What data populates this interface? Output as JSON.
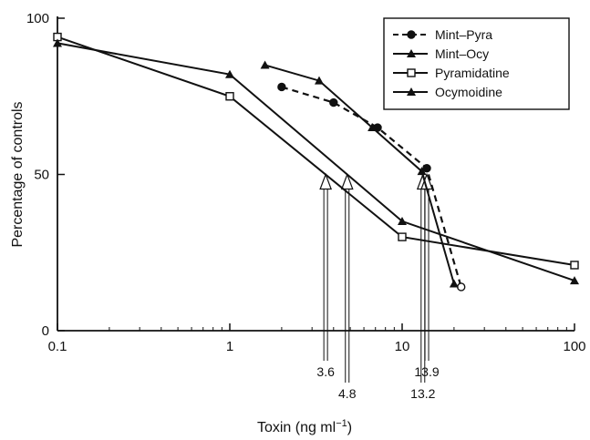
{
  "chart_data": {
    "type": "line",
    "x_scale": "log",
    "xlabel": "Toxin (ng ml",
    "xlabel_sup": "−1",
    "xlabel_suffix": ")",
    "ylabel": "Percentage of controls",
    "xlim": [
      0.1,
      100
    ],
    "ylim": [
      0,
      100
    ],
    "x_ticks": [
      {
        "value": 0.1,
        "label": "0.1"
      },
      {
        "value": 1,
        "label": "1"
      },
      {
        "value": 10,
        "label": "10"
      },
      {
        "value": 100,
        "label": "100"
      }
    ],
    "y_ticks": [
      {
        "value": 0,
        "label": "0"
      },
      {
        "value": 50,
        "label": "50"
      },
      {
        "value": 100,
        "label": "100"
      }
    ],
    "grid": false,
    "legend_position": "top-right",
    "series": [
      {
        "name": "Mint–Pyra",
        "style": "dashed",
        "marker": "filled-circle",
        "color": "#111111",
        "points": [
          [
            2.0,
            78
          ],
          [
            4.0,
            73
          ],
          [
            7.2,
            65
          ],
          [
            13.9,
            52
          ],
          [
            22,
            14
          ]
        ]
      },
      {
        "name": "Mint–Ocy",
        "style": "solid",
        "marker": "filled-triangle",
        "color": "#111111",
        "points": [
          [
            1.6,
            85
          ],
          [
            3.3,
            80
          ],
          [
            6.7,
            65
          ],
          [
            13.0,
            51
          ],
          [
            20,
            15
          ]
        ]
      },
      {
        "name": "Pyramidatine",
        "style": "solid",
        "marker": "open-square",
        "color": "#111111",
        "points": [
          [
            0.1,
            94
          ],
          [
            1.0,
            75
          ],
          [
            10,
            30
          ],
          [
            100,
            21
          ]
        ]
      },
      {
        "name": "Ocymoidine",
        "style": "solid",
        "marker": "filled-triangle",
        "color": "#111111",
        "points": [
          [
            0.1,
            92
          ],
          [
            1.0,
            82
          ],
          [
            10,
            35
          ],
          [
            100,
            16
          ]
        ]
      }
    ],
    "annotations": [
      {
        "label": "3.6",
        "x": 3.6,
        "y_tip": 50
      },
      {
        "label": "4.8",
        "x": 4.8,
        "y_tip": 50
      },
      {
        "label": "13.2",
        "x": 13.2,
        "y_tip": 50
      },
      {
        "label": "13.9",
        "x": 13.9,
        "y_tip": 50
      }
    ]
  }
}
